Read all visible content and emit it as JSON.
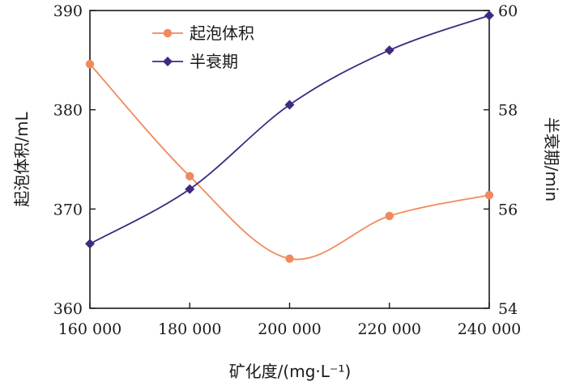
{
  "chart_data": {
    "type": "line",
    "x": [
      160000,
      180000,
      200000,
      220000,
      240000
    ],
    "x_tick_labels": [
      "160 000",
      "180 000",
      "200 000",
      "220 000",
      "240 000"
    ],
    "xlim": [
      160000,
      240000
    ],
    "xlabel": "矿化度/(mg·L⁻¹)",
    "y_left": {
      "label": "起泡体积/mL",
      "ylim": [
        360,
        390
      ],
      "ticks": [
        "360",
        "370",
        "380",
        "390"
      ]
    },
    "y_right": {
      "label": "半衰期/min",
      "ylim": [
        54,
        60
      ],
      "ticks": [
        "54",
        "56",
        "58",
        "60"
      ]
    },
    "series": [
      {
        "name": "起泡体积",
        "axis": "left",
        "color": "#f08a5d",
        "marker": "circle",
        "values": [
          384.6,
          373.3,
          365.0,
          369.3,
          371.4
        ]
      },
      {
        "name": "半衰期",
        "axis": "right",
        "color": "#3f2a7e",
        "marker": "diamond",
        "values": [
          55.3,
          56.4,
          58.1,
          59.2,
          59.9
        ]
      }
    ],
    "legend_position": "top-center",
    "grid": false
  }
}
